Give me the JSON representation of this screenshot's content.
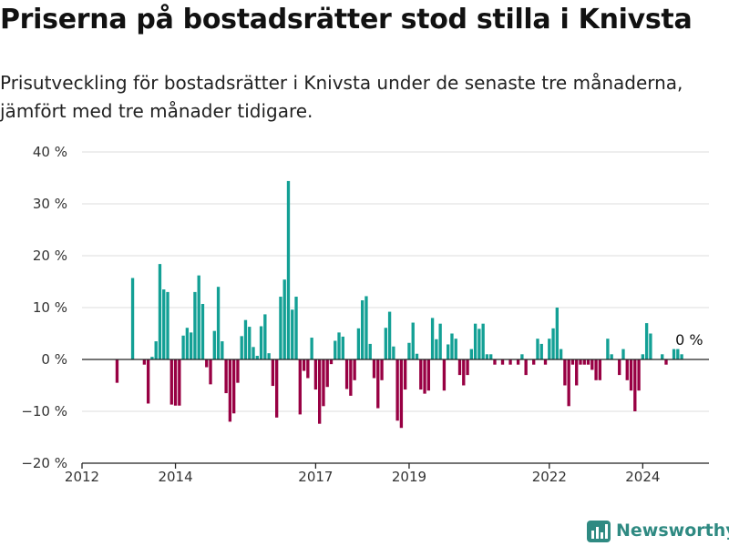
{
  "title": "Priserna på bostadsrätter stod stilla i Knivsta",
  "subtitle": "Prisutveckling för bostadsrätter i Knivsta under de senaste tre månaderna, jämfört med tre månader tidigare.",
  "colors": {
    "positive": "#13a095",
    "negative": "#980043",
    "grid": "#dddddd",
    "axis": "#222222"
  },
  "brand": {
    "name": "Newsworthy",
    "icon": "bar-chart-logo-icon",
    "color": "#2f8a82"
  },
  "chart_data": {
    "type": "bar",
    "title": "",
    "xlabel": "",
    "ylabel": "",
    "ylim": [
      -20,
      40
    ],
    "yticks": [
      -20,
      -10,
      0,
      10,
      20,
      30,
      40
    ],
    "ytick_labels": [
      "−20 %",
      "−10 %",
      "0 %",
      "10 %",
      "20 %",
      "30 %",
      "40 %"
    ],
    "xlim": [
      "2012-01",
      "2025-06"
    ],
    "xticks": [
      "2012",
      "2014",
      "2017",
      "2019",
      "2022",
      "2024"
    ],
    "grid": true,
    "annotation": {
      "text": "0 %",
      "x": "2024-12"
    },
    "series": [
      {
        "x": "2012-10",
        "value": -4.5
      },
      {
        "x": "2013-02",
        "value": 15.7
      },
      {
        "x": "2013-05",
        "value": -1.0
      },
      {
        "x": "2013-06",
        "value": -8.5
      },
      {
        "x": "2013-07",
        "value": 0.5
      },
      {
        "x": "2013-08",
        "value": 3.5
      },
      {
        "x": "2013-09",
        "value": 18.4
      },
      {
        "x": "2013-10",
        "value": 13.5
      },
      {
        "x": "2013-11",
        "value": 13.0
      },
      {
        "x": "2013-12",
        "value": -8.7
      },
      {
        "x": "2014-01",
        "value": -8.9
      },
      {
        "x": "2014-02",
        "value": -8.9
      },
      {
        "x": "2014-03",
        "value": 4.6
      },
      {
        "x": "2014-04",
        "value": 6.1
      },
      {
        "x": "2014-05",
        "value": 5.2
      },
      {
        "x": "2014-06",
        "value": 13.0
      },
      {
        "x": "2014-07",
        "value": 16.2
      },
      {
        "x": "2014-08",
        "value": 10.7
      },
      {
        "x": "2014-09",
        "value": -1.5
      },
      {
        "x": "2014-10",
        "value": -4.8
      },
      {
        "x": "2014-11",
        "value": 5.5
      },
      {
        "x": "2014-12",
        "value": 14.0
      },
      {
        "x": "2015-01",
        "value": 3.5
      },
      {
        "x": "2015-02",
        "value": -6.5
      },
      {
        "x": "2015-03",
        "value": -12.0
      },
      {
        "x": "2015-04",
        "value": -10.4
      },
      {
        "x": "2015-05",
        "value": -4.5
      },
      {
        "x": "2015-06",
        "value": 4.5
      },
      {
        "x": "2015-07",
        "value": 7.6
      },
      {
        "x": "2015-08",
        "value": 6.3
      },
      {
        "x": "2015-09",
        "value": 2.4
      },
      {
        "x": "2015-10",
        "value": 0.7
      },
      {
        "x": "2015-11",
        "value": 6.4
      },
      {
        "x": "2015-12",
        "value": 8.7
      },
      {
        "x": "2016-01",
        "value": 1.2
      },
      {
        "x": "2016-02",
        "value": -5.1
      },
      {
        "x": "2016-03",
        "value": -11.2
      },
      {
        "x": "2016-04",
        "value": 12.1
      },
      {
        "x": "2016-05",
        "value": 15.4
      },
      {
        "x": "2016-06",
        "value": 34.4
      },
      {
        "x": "2016-07",
        "value": 9.6
      },
      {
        "x": "2016-08",
        "value": 12.1
      },
      {
        "x": "2016-09",
        "value": -10.6
      },
      {
        "x": "2016-10",
        "value": -2.2
      },
      {
        "x": "2016-11",
        "value": -3.6
      },
      {
        "x": "2016-12",
        "value": 4.2
      },
      {
        "x": "2017-01",
        "value": -5.8
      },
      {
        "x": "2017-02",
        "value": -12.4
      },
      {
        "x": "2017-03",
        "value": -9.0
      },
      {
        "x": "2017-04",
        "value": -5.3
      },
      {
        "x": "2017-05",
        "value": -0.9
      },
      {
        "x": "2017-06",
        "value": 3.6
      },
      {
        "x": "2017-07",
        "value": 5.2
      },
      {
        "x": "2017-08",
        "value": 4.4
      },
      {
        "x": "2017-09",
        "value": -5.7
      },
      {
        "x": "2017-10",
        "value": -7.0
      },
      {
        "x": "2017-11",
        "value": -4.0
      },
      {
        "x": "2017-12",
        "value": 6.0
      },
      {
        "x": "2018-01",
        "value": 11.4
      },
      {
        "x": "2018-02",
        "value": 12.2
      },
      {
        "x": "2018-03",
        "value": 3.0
      },
      {
        "x": "2018-04",
        "value": -3.6
      },
      {
        "x": "2018-05",
        "value": -9.4
      },
      {
        "x": "2018-06",
        "value": -4.0
      },
      {
        "x": "2018-07",
        "value": 6.1
      },
      {
        "x": "2018-08",
        "value": 9.2
      },
      {
        "x": "2018-09",
        "value": 2.5
      },
      {
        "x": "2018-10",
        "value": -11.8
      },
      {
        "x": "2018-11",
        "value": -13.2
      },
      {
        "x": "2018-12",
        "value": -5.8
      },
      {
        "x": "2019-01",
        "value": 3.2
      },
      {
        "x": "2019-02",
        "value": 7.1
      },
      {
        "x": "2019-03",
        "value": 1.1
      },
      {
        "x": "2019-04",
        "value": -5.8
      },
      {
        "x": "2019-05",
        "value": -6.6
      },
      {
        "x": "2019-06",
        "value": -6.0
      },
      {
        "x": "2019-07",
        "value": 8.0
      },
      {
        "x": "2019-08",
        "value": 3.9
      },
      {
        "x": "2019-09",
        "value": 6.9
      },
      {
        "x": "2019-10",
        "value": -6.0
      },
      {
        "x": "2019-11",
        "value": 2.9
      },
      {
        "x": "2019-12",
        "value": 5.0
      },
      {
        "x": "2020-01",
        "value": 4.0
      },
      {
        "x": "2020-02",
        "value": -3.0
      },
      {
        "x": "2020-03",
        "value": -5.0
      },
      {
        "x": "2020-04",
        "value": -3.0
      },
      {
        "x": "2020-05",
        "value": 2.0
      },
      {
        "x": "2020-06",
        "value": 6.9
      },
      {
        "x": "2020-07",
        "value": 5.9
      },
      {
        "x": "2020-08",
        "value": 6.9
      },
      {
        "x": "2020-09",
        "value": 1.0
      },
      {
        "x": "2020-10",
        "value": 1.0
      },
      {
        "x": "2020-11",
        "value": -1.0
      },
      {
        "x": "2021-01",
        "value": -1.0
      },
      {
        "x": "2021-03",
        "value": -1.0
      },
      {
        "x": "2021-05",
        "value": -1.0
      },
      {
        "x": "2021-06",
        "value": 1.0
      },
      {
        "x": "2021-07",
        "value": -3.0
      },
      {
        "x": "2021-09",
        "value": -1.0
      },
      {
        "x": "2021-10",
        "value": 4.0
      },
      {
        "x": "2021-11",
        "value": 3.0
      },
      {
        "x": "2021-12",
        "value": -1.0
      },
      {
        "x": "2022-01",
        "value": 4.0
      },
      {
        "x": "2022-02",
        "value": 6.0
      },
      {
        "x": "2022-03",
        "value": 10.0
      },
      {
        "x": "2022-04",
        "value": 2.0
      },
      {
        "x": "2022-05",
        "value": -5.0
      },
      {
        "x": "2022-06",
        "value": -9.0
      },
      {
        "x": "2022-07",
        "value": -1.0
      },
      {
        "x": "2022-08",
        "value": -5.0
      },
      {
        "x": "2022-09",
        "value": -1.0
      },
      {
        "x": "2022-10",
        "value": -1.0
      },
      {
        "x": "2022-11",
        "value": -1.0
      },
      {
        "x": "2022-12",
        "value": -2.0
      },
      {
        "x": "2023-01",
        "value": -4.0
      },
      {
        "x": "2023-02",
        "value": -4.0
      },
      {
        "x": "2023-04",
        "value": 4.0
      },
      {
        "x": "2023-05",
        "value": 1.0
      },
      {
        "x": "2023-07",
        "value": -3.0
      },
      {
        "x": "2023-08",
        "value": 2.0
      },
      {
        "x": "2023-09",
        "value": -4.0
      },
      {
        "x": "2023-10",
        "value": -6.0
      },
      {
        "x": "2023-11",
        "value": -10.0
      },
      {
        "x": "2023-12",
        "value": -6.0
      },
      {
        "x": "2024-01",
        "value": 1.0
      },
      {
        "x": "2024-02",
        "value": 7.0
      },
      {
        "x": "2024-03",
        "value": 5.0
      },
      {
        "x": "2024-06",
        "value": 1.0
      },
      {
        "x": "2024-07",
        "value": -1.0
      },
      {
        "x": "2024-09",
        "value": 2.0
      },
      {
        "x": "2024-10",
        "value": 2.0
      },
      {
        "x": "2024-11",
        "value": 1.0
      },
      {
        "x": "2024-12",
        "value": 0.0
      }
    ]
  }
}
